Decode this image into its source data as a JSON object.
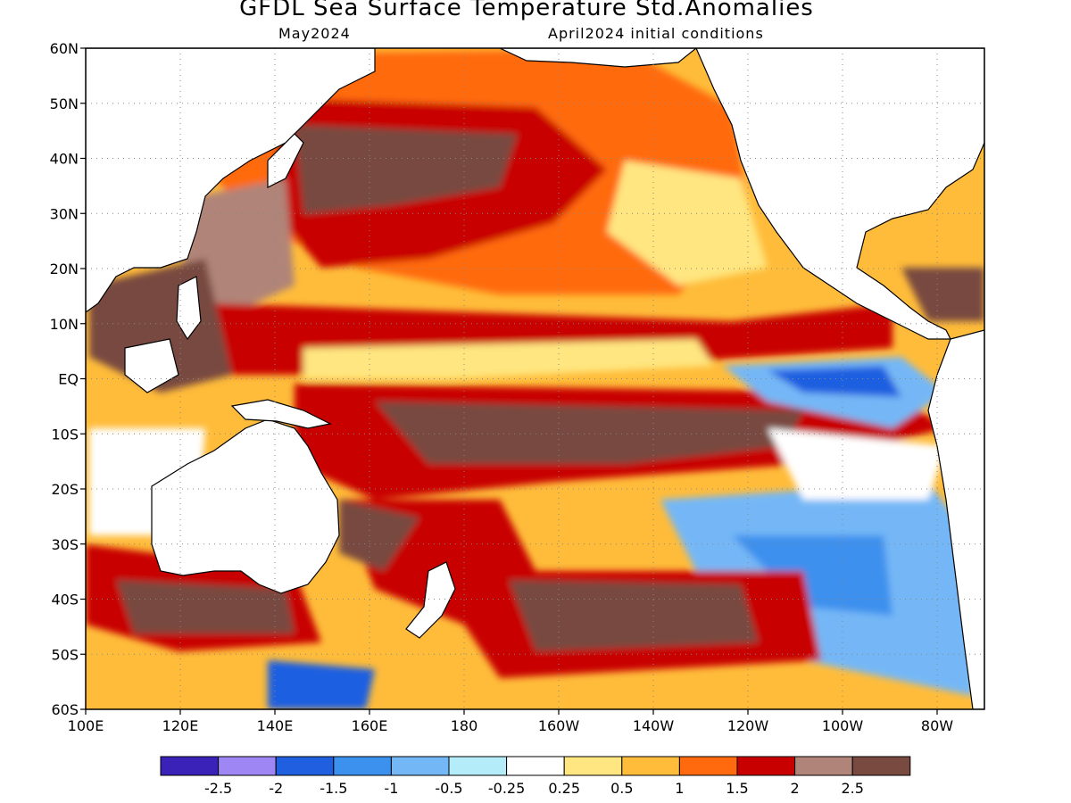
{
  "header": {
    "title": "GFDL Sea Surface Temperature Std.Anomalies",
    "valid_month": "May2024",
    "initial_conditions": "April2024 initial conditions"
  },
  "map": {
    "lat_labels": [
      "60N",
      "50N",
      "40N",
      "30N",
      "20N",
      "10N",
      "EQ",
      "10S",
      "20S",
      "30S",
      "40S",
      "50S",
      "60S"
    ],
    "lon_labels": [
      "100E",
      "120E",
      "140E",
      "160E",
      "180",
      "160W",
      "140W",
      "120W",
      "100W",
      "80W"
    ],
    "lat_range": [
      -60,
      60
    ],
    "lon_range": [
      100,
      290
    ],
    "grid": "dotted"
  },
  "colorbar": {
    "colors": [
      "#3a22b8",
      "#9e87f5",
      "#1f5fe0",
      "#3c90ee",
      "#74b7f6",
      "#b4ecfa",
      "#ffffff",
      "#ffe680",
      "#ffbc3a",
      "#ff6a0e",
      "#c80000",
      "#b08478",
      "#784a40"
    ],
    "labels": [
      "-2.5",
      "-2",
      "-1.5",
      "-1",
      "-0.5",
      "-0.25",
      "0.25",
      "0.5",
      "1",
      "1.5",
      "2",
      "2.5"
    ]
  },
  "legend_colors": {
    "ocean_base": "#ffbc3a",
    "warm_band": "#ff6a0e",
    "hot_band": "#c80000",
    "very_hot": "#b08478",
    "extreme": "#784a40",
    "cool": "#74b7f6",
    "cold": "#1f5fe0",
    "land": "#ffffff"
  }
}
